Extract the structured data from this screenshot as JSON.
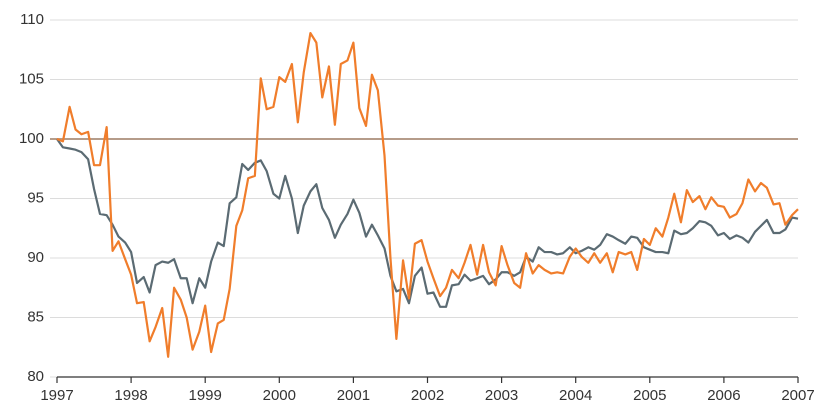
{
  "chart_data": {
    "type": "line",
    "x": [
      1997.0,
      1997.08,
      1997.17,
      1997.25,
      1997.33,
      1997.42,
      1997.5,
      1997.58,
      1997.67,
      1997.75,
      1997.83,
      1997.92,
      1998.0,
      1998.08,
      1998.17,
      1998.25,
      1998.33,
      1998.42,
      1998.5,
      1998.58,
      1998.67,
      1998.75,
      1998.83,
      1998.92,
      1999.0,
      1999.08,
      1999.17,
      1999.25,
      1999.33,
      1999.42,
      1999.5,
      1999.58,
      1999.67,
      1999.75,
      1999.83,
      1999.92,
      2000.0,
      2000.08,
      2000.17,
      2000.25,
      2000.33,
      2000.42,
      2000.5,
      2000.58,
      2000.67,
      2000.75,
      2000.83,
      2000.92,
      2001.0,
      2001.08,
      2001.17,
      2001.25,
      2001.33,
      2001.42,
      2001.5,
      2001.58,
      2001.67,
      2001.75,
      2001.83,
      2001.92,
      2002.0,
      2002.08,
      2002.17,
      2002.25,
      2002.33,
      2002.42,
      2002.5,
      2002.58,
      2002.67,
      2002.75,
      2002.83,
      2002.92,
      2003.0,
      2003.08,
      2003.17,
      2003.25,
      2003.33,
      2003.42,
      2003.5,
      2003.58,
      2003.67,
      2003.75,
      2003.83,
      2003.92,
      2004.0,
      2004.08,
      2004.17,
      2004.25,
      2004.33,
      2004.42,
      2004.5,
      2004.58,
      2004.67,
      2004.75,
      2004.83,
      2004.92,
      2005.0,
      2005.08,
      2005.17,
      2005.25,
      2005.33,
      2005.42,
      2005.5,
      2005.58,
      2005.67,
      2005.75,
      2005.83,
      2005.92,
      2006.0,
      2006.08,
      2006.17,
      2006.25,
      2006.33,
      2006.42,
      2006.5,
      2006.58,
      2006.67,
      2006.75,
      2006.83,
      2006.92,
      2007.0
    ],
    "series": [
      {
        "color": "#5b6b73",
        "values": [
          100,
          99.3,
          99.2,
          99.1,
          98.9,
          98.3,
          95.8,
          93.7,
          93.6,
          92.8,
          91.8,
          91.3,
          90.5,
          87.9,
          88.4,
          87.1,
          89.4,
          89.7,
          89.6,
          89.9,
          88.3,
          88.3,
          86.2,
          88.3,
          87.5,
          89.7,
          91.3,
          91.0,
          94.6,
          95.1,
          97.9,
          97.4,
          98.0,
          98.2,
          97.3,
          95.4,
          95.0,
          96.9,
          95.0,
          92.1,
          94.4,
          95.6,
          96.2,
          94.2,
          93.2,
          91.7,
          92.8,
          93.7,
          94.9,
          93.8,
          91.8,
          92.8,
          91.9,
          90.8,
          88.5,
          87.2,
          87.4,
          86.2,
          88.5,
          89.2,
          87.0,
          87.1,
          85.9,
          85.9,
          87.7,
          87.8,
          88.6,
          88.1,
          88.3,
          88.5,
          87.8,
          88.2,
          88.8,
          88.8,
          88.5,
          88.8,
          90.1,
          89.7,
          90.9,
          90.5,
          90.5,
          90.3,
          90.4,
          90.9,
          90.4,
          90.6,
          90.9,
          90.7,
          91.1,
          92.0,
          91.8,
          91.5,
          91.2,
          91.8,
          91.7,
          90.9,
          90.7,
          90.5,
          90.5,
          90.4,
          92.3,
          92.0,
          92.1,
          92.5,
          93.1,
          93.0,
          92.7,
          91.9,
          92.1,
          91.6,
          91.9,
          91.7,
          91.3,
          92.2,
          92.7,
          93.2,
          92.1,
          92.1,
          92.4,
          93.4,
          93.3
        ]
      },
      {
        "color": "#f07d2b",
        "values": [
          100,
          99.8,
          102.7,
          100.8,
          100.4,
          100.6,
          97.8,
          97.8,
          101.0,
          90.6,
          91.4,
          89.9,
          88.6,
          86.2,
          86.3,
          83.0,
          84.2,
          85.8,
          81.7,
          87.5,
          86.5,
          85.0,
          82.3,
          83.8,
          86.0,
          82.1,
          84.5,
          84.8,
          87.4,
          92.7,
          94.0,
          96.7,
          96.9,
          105.1,
          102.5,
          102.7,
          105.2,
          104.8,
          106.3,
          101.4,
          105.6,
          108.9,
          108.1,
          103.5,
          106.1,
          101.2,
          106.3,
          106.6,
          108.1,
          102.6,
          101.1,
          105.4,
          104.1,
          98.6,
          90.0,
          83.2,
          89.8,
          86.6,
          91.2,
          91.5,
          89.7,
          88.3,
          86.8,
          87.5,
          89.0,
          88.3,
          89.6,
          91.1,
          88.6,
          91.1,
          88.8,
          87.7,
          91.0,
          89.4,
          87.9,
          87.5,
          90.4,
          88.7,
          89.4,
          89.0,
          88.7,
          88.8,
          88.7,
          90.1,
          90.8,
          90.1,
          89.6,
          90.4,
          89.6,
          90.4,
          88.8,
          90.5,
          90.3,
          90.5,
          89.0,
          91.6,
          91.1,
          92.5,
          91.8,
          93.4,
          95.4,
          93.0,
          95.7,
          94.7,
          95.2,
          94.1,
          95.1,
          94.4,
          94.3,
          93.4,
          93.7,
          94.6,
          96.6,
          95.6,
          96.3,
          95.9,
          94.5,
          94.6,
          92.8,
          93.6,
          94.1
        ]
      }
    ],
    "xlim": [
      1997,
      2007
    ],
    "xticks": [
      1997,
      1998,
      1999,
      2000,
      2001,
      2002,
      2003,
      2004,
      2005,
      2006,
      2007
    ],
    "ylim": [
      80,
      110
    ],
    "yticks": [
      80,
      85,
      90,
      95,
      100,
      105,
      110
    ],
    "grid": true,
    "reference_line": {
      "value": 100,
      "color": "#b59c8a"
    }
  }
}
